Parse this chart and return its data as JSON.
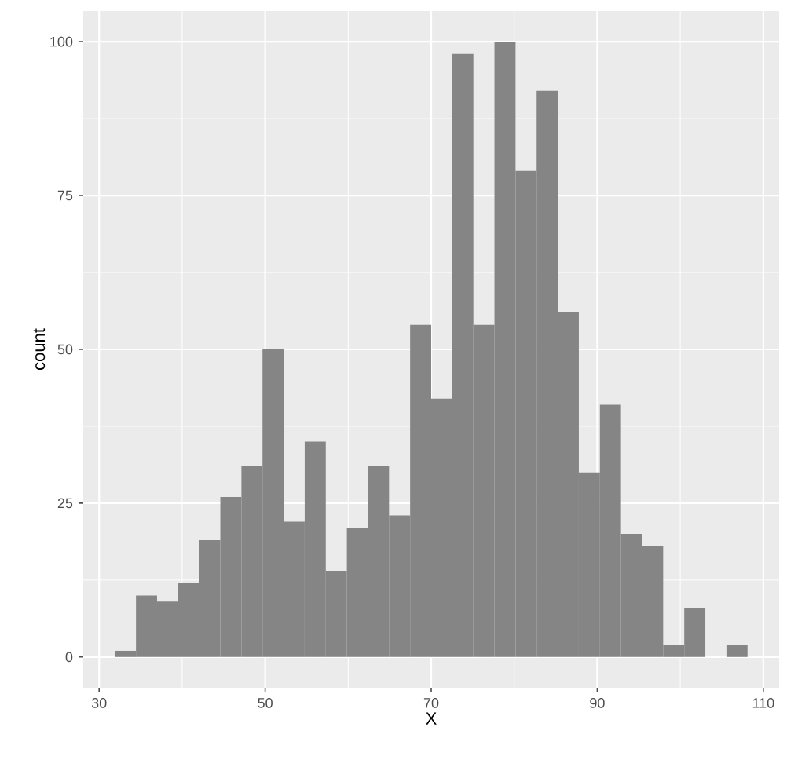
{
  "chart_data": {
    "type": "histogram",
    "xlabel": "X",
    "ylabel": "count",
    "bins": [
      31.9,
      34.44,
      36.98,
      39.52,
      42.06,
      44.6,
      47.14,
      49.68,
      52.22,
      54.76,
      57.3,
      59.84,
      62.38,
      64.92,
      67.46,
      70.0,
      72.54,
      75.08,
      77.62,
      80.16,
      82.7,
      85.24,
      87.78,
      90.32,
      92.86,
      95.4,
      97.94,
      100.48,
      103.02,
      105.56,
      108.1
    ],
    "values": [
      1,
      10,
      9,
      12,
      19,
      26,
      31,
      50,
      22,
      35,
      14,
      21,
      31,
      23,
      54,
      42,
      98,
      54,
      100,
      79,
      92,
      56,
      30,
      41,
      20,
      18,
      2,
      8,
      0,
      2
    ],
    "color": "#858585",
    "xlim": [
      28.09,
      111.91
    ],
    "ylim": [
      -5,
      105
    ],
    "xticks": [
      30,
      50,
      70,
      90,
      110
    ],
    "yticks": [
      0,
      25,
      50,
      75,
      100
    ],
    "grid": true
  }
}
